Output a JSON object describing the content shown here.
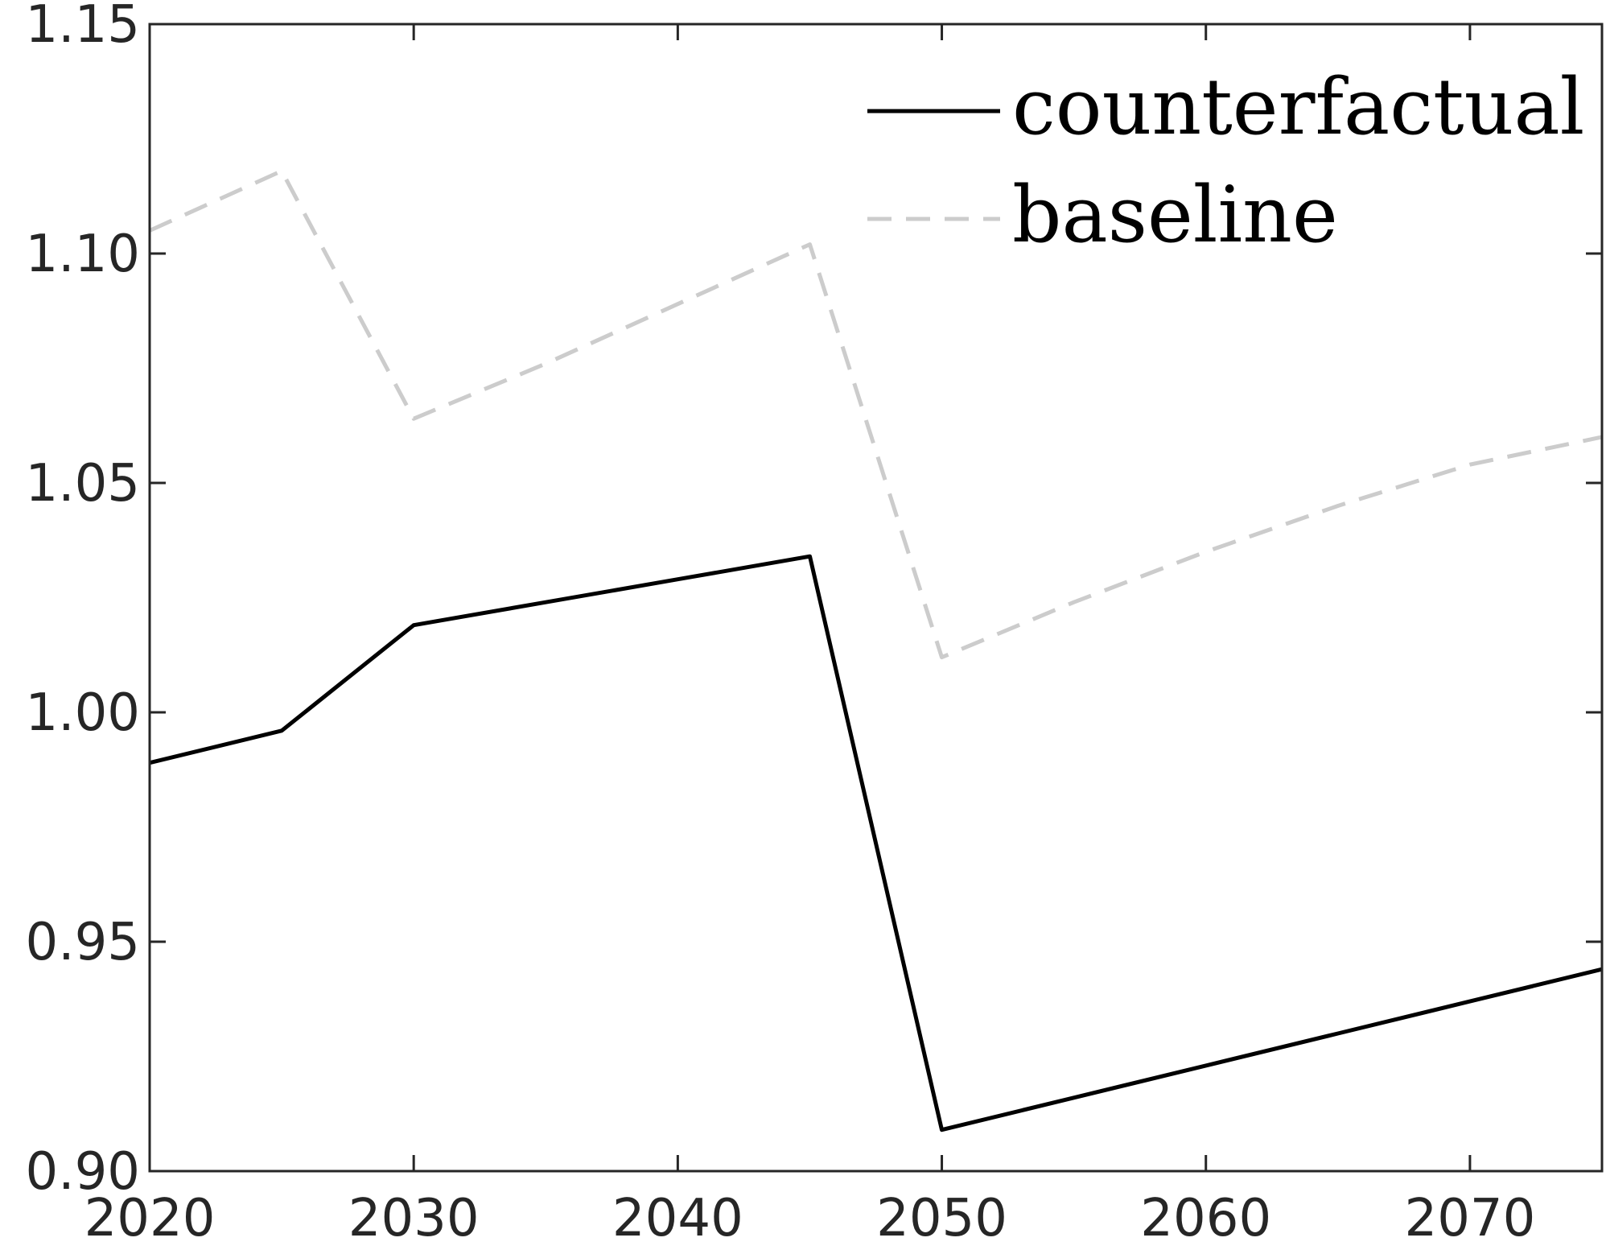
{
  "chart_data": {
    "type": "line",
    "title": "",
    "xlabel": "",
    "ylabel": "",
    "xlim": [
      2020,
      2075
    ],
    "ylim": [
      0.9,
      1.15
    ],
    "xticks": [
      2020,
      2030,
      2040,
      2050,
      2060,
      2070
    ],
    "xtick_labels": [
      "2020",
      "2030",
      "2040",
      "2050",
      "2060",
      "2070"
    ],
    "yticks": [
      0.9,
      0.95,
      1.0,
      1.05,
      1.1,
      1.15
    ],
    "ytick_labels": [
      "0.90",
      "0.95",
      "1.00",
      "1.05",
      "1.10",
      "1.15"
    ],
    "grid": false,
    "legend_position": "top-right",
    "series": [
      {
        "name": "counterfactual",
        "color": "#000000",
        "line_style": "solid",
        "x": [
          2020,
          2025,
          2030,
          2035,
          2040,
          2045,
          2050,
          2055,
          2060,
          2065,
          2070,
          2075
        ],
        "y": [
          0.989,
          0.996,
          1.019,
          1.024,
          1.029,
          1.034,
          0.909,
          0.916,
          0.923,
          0.93,
          0.937,
          0.944
        ]
      },
      {
        "name": "baseline",
        "color": "#cccccc",
        "line_style": "dashed",
        "x": [
          2020,
          2025,
          2030,
          2035,
          2040,
          2045,
          2050,
          2055,
          2060,
          2065,
          2070,
          2075
        ],
        "y": [
          1.105,
          1.118,
          1.064,
          1.076,
          1.089,
          1.102,
          1.012,
          1.024,
          1.035,
          1.045,
          1.054,
          1.06
        ]
      }
    ]
  }
}
